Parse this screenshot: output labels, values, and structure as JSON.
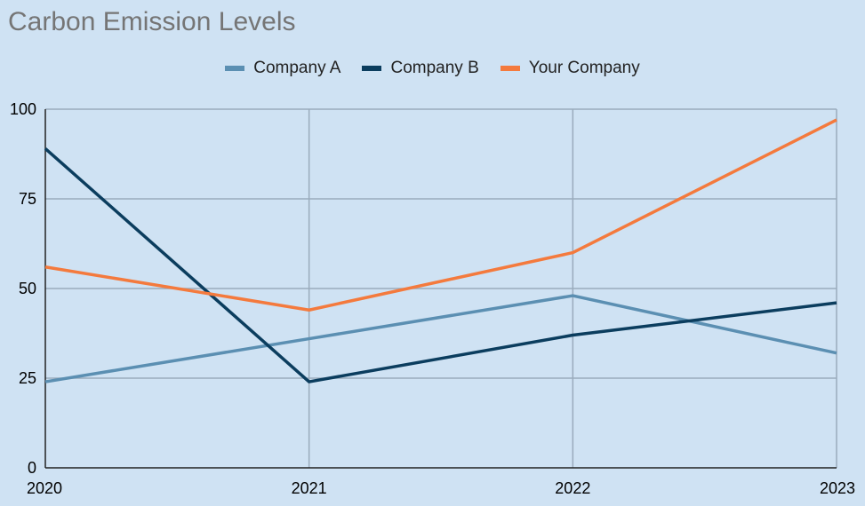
{
  "chart_data": {
    "type": "line",
    "title": "Carbon Emission Levels",
    "xlabel": "",
    "ylabel": "",
    "categories": [
      "2020",
      "2021",
      "2022",
      "2023"
    ],
    "ylim": [
      0,
      100
    ],
    "yticks": [
      0,
      25,
      50,
      75,
      100
    ],
    "grid": true,
    "legend_position": "top",
    "series": [
      {
        "name": "Company A",
        "color": "#5b8fb2",
        "values": [
          24,
          36,
          48,
          32
        ]
      },
      {
        "name": "Company B",
        "color": "#0b3d5e",
        "values": [
          89,
          24,
          37,
          46
        ]
      },
      {
        "name": "Your Company",
        "color": "#f47a3d",
        "values": [
          56,
          44,
          60,
          97
        ]
      }
    ]
  }
}
